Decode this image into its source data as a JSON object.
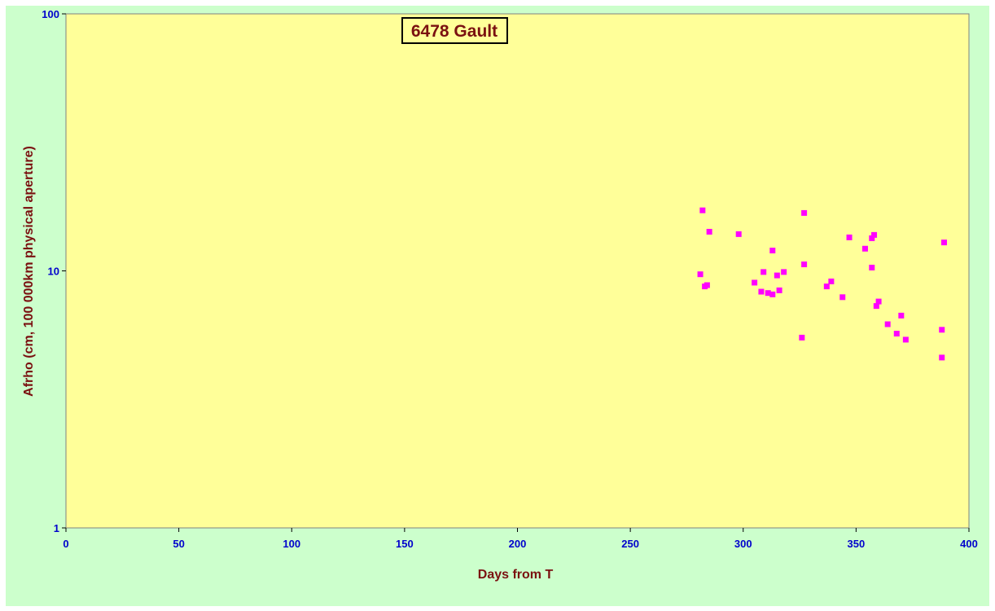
{
  "chart_data": {
    "type": "scatter",
    "title": "6478 Gault",
    "xlabel": "Days from T",
    "ylabel": "Afrho (cm, 100 000km physical aperture)",
    "xlim": [
      0,
      400
    ],
    "ylim": [
      1,
      100
    ],
    "yscale": "log",
    "x_ticks": [
      "0",
      "50",
      "100",
      "150",
      "200",
      "250",
      "300",
      "350",
      "400"
    ],
    "y_ticks": [
      "1",
      "10",
      "100"
    ],
    "grid": false,
    "legend": "none",
    "colors": {
      "plot_background": "#ffff99",
      "chart_background": "#ccffcc",
      "marker": "#ff00ff",
      "tick_labels": "#0000cc",
      "titles": "#7a1010"
    },
    "series": [
      {
        "marker": "square",
        "points": [
          [
            281,
            9.7
          ],
          [
            282,
            17.2
          ],
          [
            283,
            8.7
          ],
          [
            284,
            8.8
          ],
          [
            285,
            14.2
          ],
          [
            298,
            13.9
          ],
          [
            305,
            9.0
          ],
          [
            308,
            8.3
          ],
          [
            309,
            9.9
          ],
          [
            311,
            8.2
          ],
          [
            313,
            8.1
          ],
          [
            313,
            12.0
          ],
          [
            315,
            9.6
          ],
          [
            316,
            8.4
          ],
          [
            318,
            9.9
          ],
          [
            326,
            5.5
          ],
          [
            327,
            16.8
          ],
          [
            327,
            10.6
          ],
          [
            337,
            8.7
          ],
          [
            339,
            9.1
          ],
          [
            344,
            7.9
          ],
          [
            347,
            13.5
          ],
          [
            354,
            12.2
          ],
          [
            357,
            13.4
          ],
          [
            357,
            10.3
          ],
          [
            358,
            13.8
          ],
          [
            359,
            7.3
          ],
          [
            360,
            7.6
          ],
          [
            364,
            6.2
          ],
          [
            368,
            5.7
          ],
          [
            370,
            6.7
          ],
          [
            372,
            5.4
          ],
          [
            388,
            5.9
          ],
          [
            388,
            4.6
          ],
          [
            389,
            12.9
          ]
        ]
      }
    ]
  }
}
